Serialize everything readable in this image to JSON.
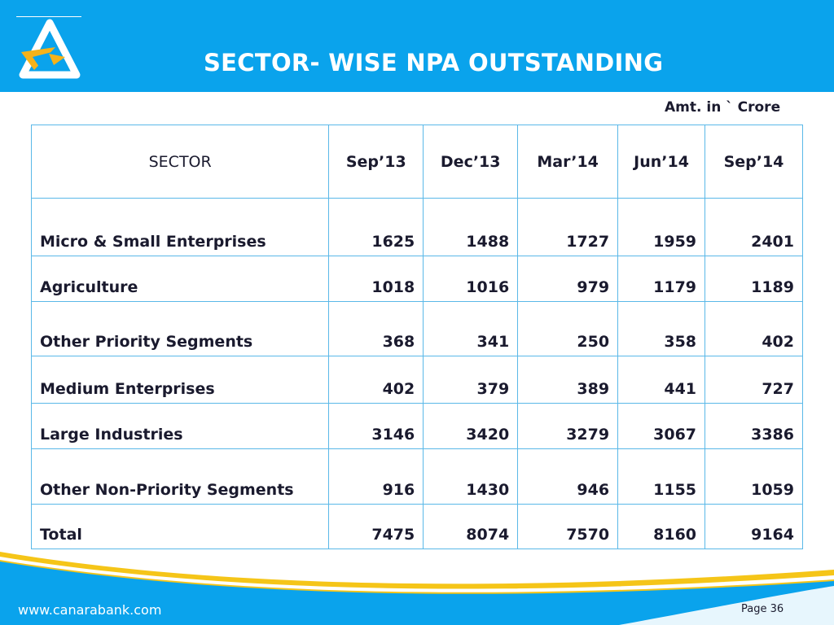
{
  "header": {
    "title": "SECTOR- WISE NPA OUTSTANDING"
  },
  "unit_note": "Amt. in ` Crore",
  "table": {
    "headers": [
      "SECTOR",
      "Sep’13",
      "Dec’13",
      "Mar’14",
      "Jun’14",
      "Sep’14"
    ],
    "rows": [
      {
        "sector": "Micro & Small Enterprises",
        "values": [
          "1625",
          "1488",
          "1727",
          "1959",
          "2401"
        ]
      },
      {
        "sector": "Agriculture",
        "values": [
          "1018",
          "1016",
          "979",
          "1179",
          "1189"
        ]
      },
      {
        "sector": "Other Priority Segments",
        "values": [
          "368",
          "341",
          "250",
          "358",
          "402"
        ]
      },
      {
        "sector": "Medium Enterprises",
        "values": [
          "402",
          "379",
          "389",
          "441",
          "727"
        ]
      },
      {
        "sector": "Large Industries",
        "values": [
          "3146",
          "3420",
          "3279",
          "3067",
          "3386"
        ]
      },
      {
        "sector": "Other Non-Priority Segments",
        "values": [
          "916",
          "1430",
          "946",
          "1155",
          "1059"
        ]
      },
      {
        "sector": "Total",
        "values": [
          "7475",
          "8074",
          "7570",
          "8160",
          "9164"
        ]
      }
    ]
  },
  "footer": {
    "website": "www.canarabank.com",
    "page": "Page  36"
  },
  "colors": {
    "header_bg": "#0aa3ec",
    "logo_yellow": "#f5b21a",
    "logo_blue": "#0aa3ec",
    "border": "#5ab8e8",
    "wave_blue": "#0aa3ec",
    "wave_yellow": "#f5c518"
  }
}
